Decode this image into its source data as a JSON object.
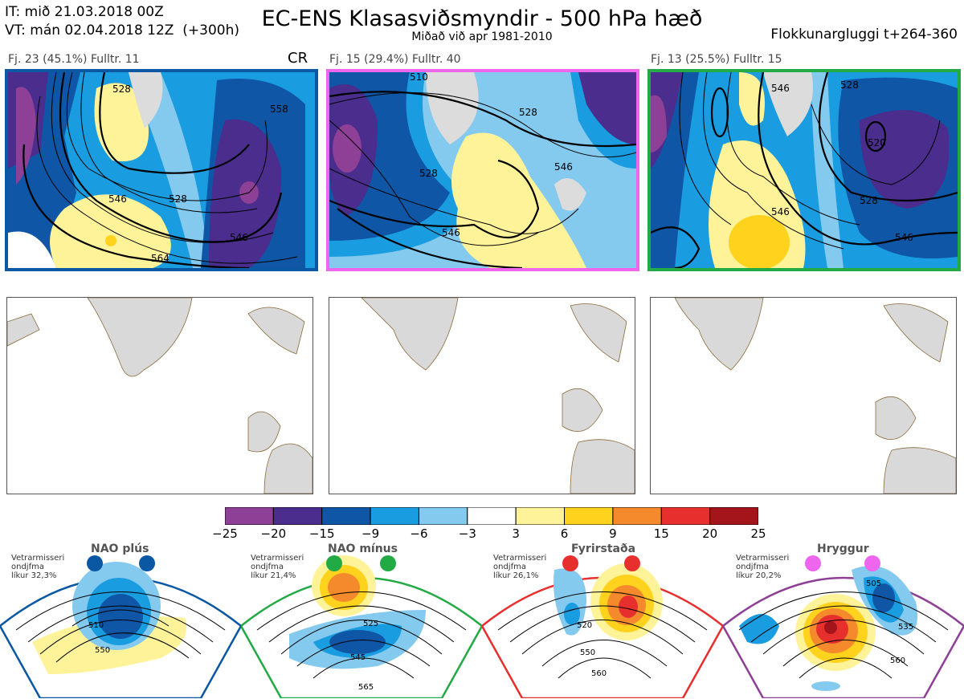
{
  "header": {
    "it_line": "IT: mið 21.03.2018 00Z",
    "vt_line": "VT: mán 02.04.2018 12Z  (+300h)",
    "title": "EC-ENS Klasasviðsmyndir - 500 hPa hæð",
    "subtitle": "Miðað við apr 1981-2010",
    "window": "Flokkunargluggi t+264-360"
  },
  "clusters": [
    {
      "label": "Fj. 23 (45.1%)   Fulltr. 11",
      "tag": "CR",
      "border_color": "#0a57a4",
      "contours": [
        "528",
        "546",
        "564",
        "528",
        "546",
        "558"
      ]
    },
    {
      "label": "Fj. 15 (29.4%)   Fulltr. 40",
      "tag": "",
      "border_color": "#ee66ee",
      "contours": [
        "510",
        "528",
        "546",
        "528",
        "546"
      ]
    },
    {
      "label": "Fj. 13 (25.5%)   Fulltr. 15",
      "tag": "",
      "border_color": "#22aa44",
      "contours": [
        "546",
        "528",
        "520",
        "546",
        "528",
        "546"
      ]
    }
  ],
  "colorbar": {
    "ticks": [
      "−25",
      "−20",
      "−15",
      "−9",
      "−6",
      "−3",
      "3",
      "6",
      "9",
      "15",
      "20",
      "25"
    ],
    "colors": [
      "#8e3f96",
      "#4a2d8c",
      "#0f56a6",
      "#1a9ce0",
      "#84c9ee",
      "#ffffff",
      "#fff39a",
      "#ffd21e",
      "#f48a2c",
      "#e72f2e",
      "#a3151a"
    ]
  },
  "regimes": [
    {
      "name": "NAO plús",
      "small": "Vetrarmisseri\nondjfma\nlíkur 32,3%",
      "color": "#0a57a4",
      "contours": [
        "510",
        "550"
      ]
    },
    {
      "name": "NAO mínus",
      "small": "Vetrarmisseri\nondjfma\nlíkur 21,4%",
      "color": "#22aa44",
      "contours": [
        "525",
        "545",
        "565"
      ]
    },
    {
      "name": "Fyrirstaða",
      "small": "Vetrarmisseri\nondjfma\nlíkur 26,1%",
      "color": "#e72f2e",
      "contours": [
        "520",
        "550",
        "560"
      ]
    },
    {
      "name": "Hryggur",
      "small": "Vetrarmisseri\nondjfma\nlíkur 20,2%",
      "color": "#ee66ee",
      "contours": [
        "505",
        "535",
        "560"
      ]
    }
  ]
}
